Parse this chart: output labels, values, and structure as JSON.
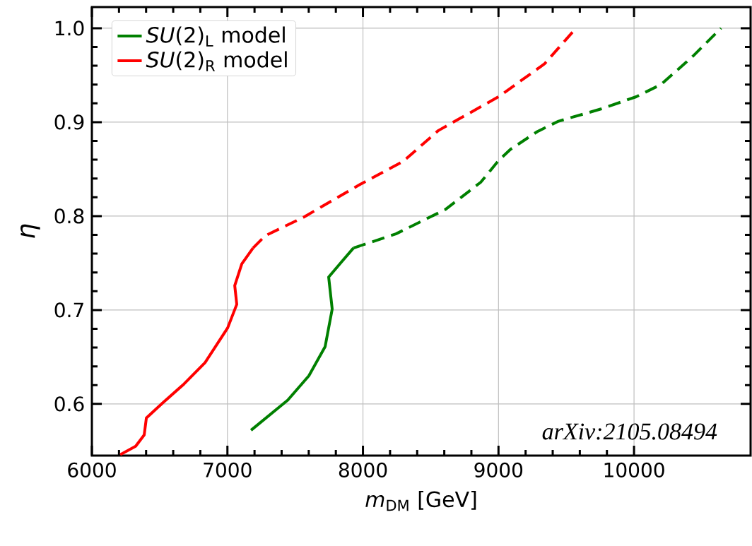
{
  "chart_data": {
    "type": "line",
    "xlabel": "*m*$_{DM}$ [GeV]",
    "ylabel": "*η*",
    "xlim": [
      6000,
      10860
    ],
    "ylim": [
      0.545,
      1.0225
    ],
    "xticks": [
      6000,
      7000,
      8000,
      9000,
      10000
    ],
    "yticks": [
      0.6,
      0.7,
      0.8,
      0.9,
      {
        "value": 1.0,
        "label": "1.0"
      }
    ],
    "grid": true,
    "legend": "top left",
    "annotations": [
      "arXiv:2105.08494"
    ],
    "series": [
      {
        "name": "*SU*(2)$_{L}$ model",
        "color": "#008000",
        "line_style": "solid",
        "x": [
          7174,
          7445,
          7601,
          7721,
          7773,
          7747,
          7841,
          7930
        ],
        "values": [
          0.572,
          0.604,
          0.63,
          0.661,
          0.701,
          0.735,
          0.751,
          0.766
        ]
      },
      {
        "name": "*SU*(2)$_{R}$ model",
        "color": "#ff0000",
        "line_style": "solid",
        "x": [
          6209,
          6323,
          6386,
          6402,
          6522,
          6678,
          6835,
          7002,
          7069,
          7054,
          7106,
          7189
        ],
        "values": [
          0.546,
          0.555,
          0.567,
          0.585,
          0.601,
          0.621,
          0.644,
          0.681,
          0.706,
          0.726,
          0.749,
          0.766
        ]
      },
      {
        "color": "#008000",
        "line_style": "dashed",
        "x": [
          7930,
          8243,
          8608,
          8869,
          9000,
          9088,
          9287,
          9443,
          9756,
          10016,
          10198,
          10433,
          10642
        ],
        "values": [
          0.766,
          0.781,
          0.807,
          0.836,
          0.859,
          0.871,
          0.89,
          0.901,
          0.914,
          0.927,
          0.94,
          0.97,
          1.0
        ]
      },
      {
        "color": "#ff0000",
        "line_style": "dashed",
        "x": [
          7189,
          7278,
          7565,
          7982,
          8295,
          8556,
          9000,
          9339,
          9547
        ],
        "values": [
          0.766,
          0.779,
          0.799,
          0.834,
          0.858,
          0.891,
          0.927,
          0.962,
          0.996
        ]
      }
    ]
  }
}
